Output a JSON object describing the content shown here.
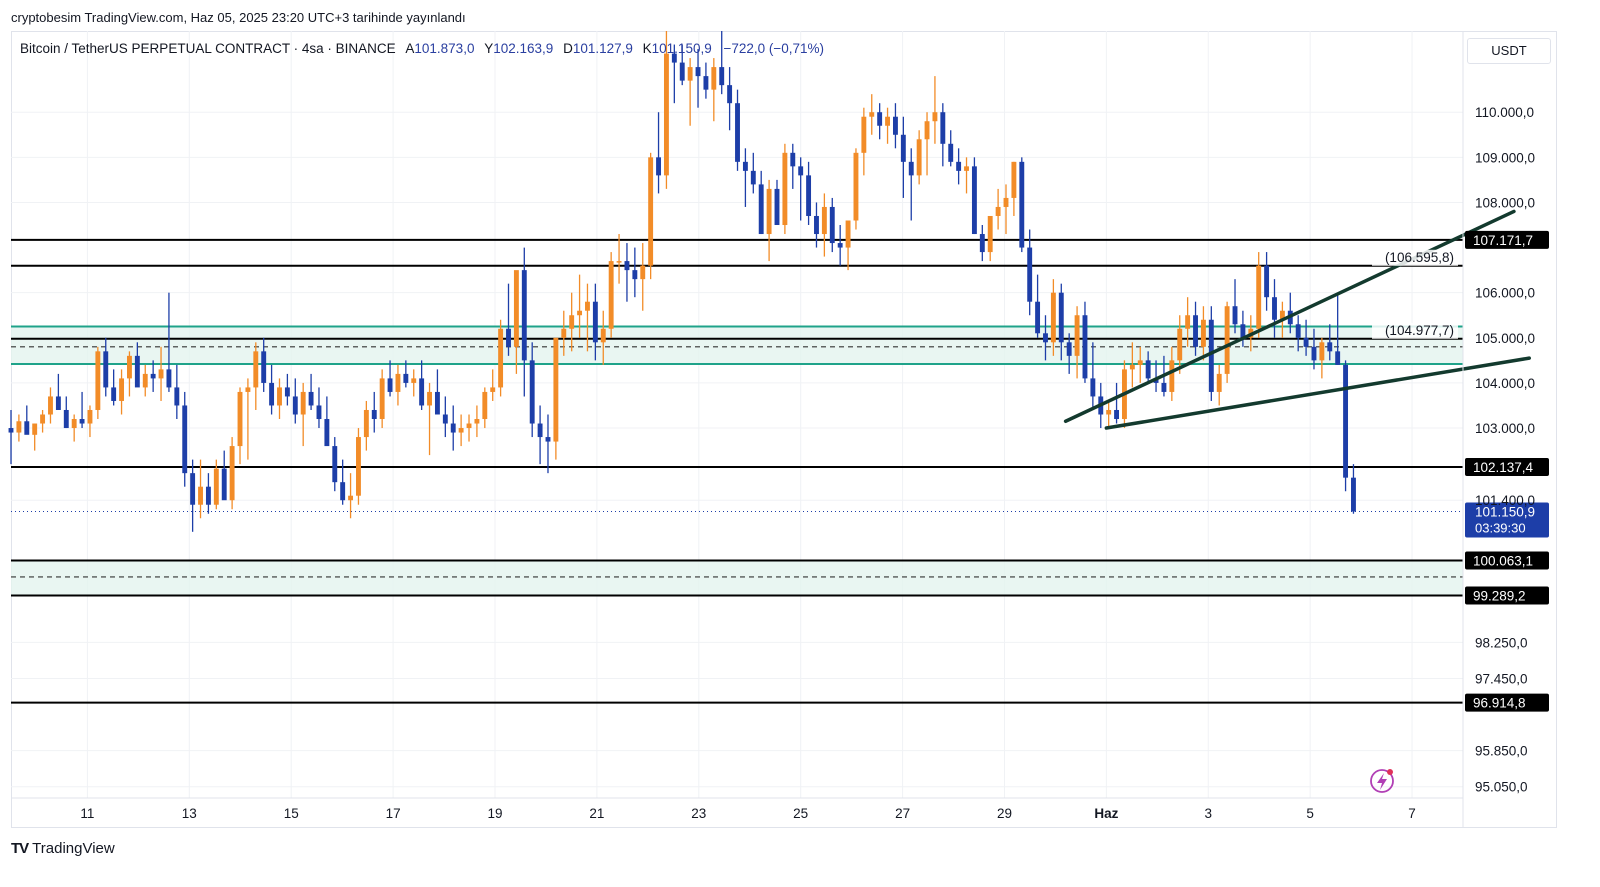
{
  "header": {
    "publish_line": "cryptobesim TradingView.com, Haz 05, 2025 23:20 UTC+3 tarihinde yayınlandı"
  },
  "legend": {
    "symbol": "Bitcoin / TetherUS PERPETUAL CONTRACT · 4sa · BINANCE",
    "open_label": "A",
    "open_value": "101.873,0",
    "high_label": "Y",
    "high_value": "102.163,9",
    "low_label": "D",
    "low_value": "101.127,9",
    "close_label": "K",
    "close_value": "101.150,9",
    "change": "−722,0 (−0,71%)"
  },
  "currency_button": "USDT",
  "branding": {
    "name": "TradingView",
    "logo_text": "TV"
  },
  "colors": {
    "up": "#f28c28",
    "down": "#1d3ea8",
    "level": "#000000",
    "zone_border": "#1fa38a",
    "zone_fill": "#e3f4ef",
    "trendline": "#133a2e",
    "grid": "#f0f2f5",
    "price_tag": "#1d3ea8"
  },
  "chart_data": {
    "type": "candlestick",
    "interval": "4sa",
    "x_tick_labels": [
      "11",
      "13",
      "15",
      "17",
      "19",
      "21",
      "23",
      "25",
      "27",
      "29",
      "Haz",
      "3",
      "5",
      "7"
    ],
    "x_tick_days": [
      11,
      13,
      15,
      17,
      19,
      21,
      23,
      25,
      27,
      29,
      31,
      33,
      35,
      37
    ],
    "x_range_days": [
      9.5,
      38.0
    ],
    "y_range": [
      94800,
      111800
    ],
    "y_tick_labels": [
      "110.000,0",
      "109.000,0",
      "108.000,0",
      "106.000,0",
      "105.000,0",
      "104.000,0",
      "103.000,0",
      "101.400,0",
      "98.250,0",
      "97.450,0",
      "95.850,0",
      "95.050,0"
    ],
    "y_tick_values": [
      110000,
      109000,
      108000,
      106000,
      105000,
      104000,
      103000,
      101400,
      98250,
      97450,
      95850,
      95050
    ],
    "horizontal_levels": [
      {
        "value": 107171.7,
        "label": "107.171,7"
      },
      {
        "value": 106595.8,
        "label": "(106.595,8)"
      },
      {
        "value": 104977.7,
        "label": "(104.977,7)"
      },
      {
        "value": 102137.4,
        "label": "102.137,4"
      },
      {
        "value": 100063.1,
        "label": "100.063,1"
      },
      {
        "value": 99289.2,
        "label": "99.289,2"
      },
      {
        "value": 96914.8,
        "label": "96.914,8"
      }
    ],
    "zones": [
      {
        "top": 105250,
        "bottom": 104420,
        "dashed_mid": 104800
      },
      {
        "top": 100063.1,
        "bottom": 99289.2,
        "dashed_mid": 99700
      }
    ],
    "trendlines": [
      {
        "from": [
          30.2,
          103150
        ],
        "to": [
          39.0,
          107800
        ]
      },
      {
        "from": [
          31.0,
          103000
        ],
        "to": [
          39.3,
          104550
        ]
      }
    ],
    "last_price": {
      "value": 101150.9,
      "label": "101.150,9",
      "countdown": "03:39:30"
    },
    "candles_ohlc": [
      [
        103000,
        103400,
        102200,
        102900
      ],
      [
        102900,
        103300,
        102700,
        103150
      ],
      [
        103150,
        103500,
        102900,
        102850
      ],
      [
        102850,
        103100,
        102500,
        103100
      ],
      [
        103100,
        103400,
        102900,
        103300
      ],
      [
        103300,
        103900,
        103100,
        103700
      ],
      [
        103700,
        104200,
        103400,
        103400
      ],
      [
        103400,
        103700,
        103000,
        103000
      ],
      [
        103000,
        103300,
        102700,
        103200
      ],
      [
        103200,
        103800,
        103000,
        103100
      ],
      [
        103100,
        103500,
        102800,
        103400
      ],
      [
        103400,
        104800,
        103200,
        104700
      ],
      [
        104700,
        105000,
        103700,
        103900
      ],
      [
        103900,
        104300,
        103500,
        103600
      ],
      [
        103600,
        104300,
        103300,
        104100
      ],
      [
        104100,
        104700,
        103700,
        104600
      ],
      [
        104600,
        104900,
        104000,
        103900
      ],
      [
        103900,
        104400,
        103700,
        104200
      ],
      [
        104200,
        104500,
        103800,
        104100
      ],
      [
        104100,
        104800,
        103600,
        104300
      ],
      [
        104300,
        106000,
        103800,
        103900
      ],
      [
        103900,
        104400,
        103200,
        103500
      ],
      [
        103500,
        103800,
        101700,
        102000
      ],
      [
        102000,
        102300,
        100700,
        101300
      ],
      [
        101300,
        102300,
        101000,
        101700
      ],
      [
        101700,
        102000,
        101100,
        101300
      ],
      [
        101300,
        102300,
        101200,
        102100
      ],
      [
        102100,
        102500,
        101500,
        101400
      ],
      [
        101400,
        102800,
        101200,
        102600
      ],
      [
        102600,
        103900,
        102200,
        103800
      ],
      [
        103800,
        104100,
        102300,
        103900
      ],
      [
        103900,
        104900,
        103400,
        104700
      ],
      [
        104700,
        105000,
        103800,
        104000
      ],
      [
        104000,
        104400,
        103300,
        103500
      ],
      [
        103500,
        104100,
        103200,
        103900
      ],
      [
        103900,
        104200,
        103500,
        103700
      ],
      [
        103700,
        104100,
        103100,
        103300
      ],
      [
        103300,
        104000,
        102600,
        103800
      ],
      [
        103800,
        104200,
        103400,
        103500
      ],
      [
        103500,
        103900,
        103000,
        103200
      ],
      [
        103200,
        103700,
        102800,
        102600
      ],
      [
        102600,
        102800,
        101600,
        101800
      ],
      [
        101800,
        102300,
        101300,
        101400
      ],
      [
        101400,
        102000,
        101000,
        101500
      ],
      [
        101500,
        103000,
        101300,
        102800
      ],
      [
        102800,
        103600,
        102500,
        103400
      ],
      [
        103400,
        103800,
        102900,
        103200
      ],
      [
        103200,
        104300,
        103000,
        104100
      ],
      [
        104100,
        104500,
        103700,
        103800
      ],
      [
        103800,
        104400,
        103500,
        104200
      ],
      [
        104200,
        104500,
        103900,
        104000
      ],
      [
        104000,
        104300,
        103700,
        104100
      ],
      [
        104100,
        104500,
        103400,
        103500
      ],
      [
        103500,
        104000,
        102400,
        103800
      ],
      [
        103800,
        104300,
        103500,
        103300
      ],
      [
        103300,
        103700,
        102800,
        103100
      ],
      [
        103100,
        103500,
        102500,
        102900
      ],
      [
        102900,
        103300,
        102600,
        103000
      ],
      [
        103000,
        103300,
        102700,
        103100
      ],
      [
        103100,
        103500,
        102800,
        103200
      ],
      [
        103200,
        103900,
        103000,
        103800
      ],
      [
        103800,
        104300,
        103600,
        103900
      ],
      [
        103900,
        105400,
        103700,
        105200
      ],
      [
        105200,
        106200,
        104600,
        104800
      ],
      [
        104800,
        106400,
        104200,
        106500
      ],
      [
        106500,
        107000,
        103700,
        104500
      ],
      [
        104500,
        104900,
        102800,
        103100
      ],
      [
        103100,
        103500,
        102200,
        102800
      ],
      [
        102800,
        103300,
        102000,
        102700
      ],
      [
        102700,
        105000,
        102300,
        105000
      ],
      [
        105000,
        105600,
        104600,
        105200
      ],
      [
        105200,
        106000,
        104700,
        105500
      ],
      [
        105500,
        106400,
        105000,
        105600
      ],
      [
        105600,
        106200,
        104700,
        105800
      ],
      [
        105800,
        106200,
        104500,
        104900
      ],
      [
        104900,
        105600,
        104400,
        105200
      ],
      [
        105200,
        106900,
        105000,
        106700
      ],
      [
        106700,
        107300,
        106200,
        106700
      ],
      [
        106700,
        107100,
        105800,
        106500
      ],
      [
        106500,
        107000,
        105900,
        106300
      ],
      [
        106300,
        107100,
        105600,
        106600
      ],
      [
        106600,
        109100,
        106300,
        109000
      ],
      [
        109000,
        110000,
        108200,
        108600
      ],
      [
        108600,
        111800,
        108300,
        111300
      ],
      [
        111300,
        111500,
        110200,
        111100
      ],
      [
        111100,
        111500,
        110600,
        110700
      ],
      [
        110700,
        111200,
        109700,
        111000
      ],
      [
        111000,
        111400,
        110100,
        110800
      ],
      [
        110800,
        111100,
        110300,
        110500
      ],
      [
        110500,
        111200,
        109800,
        111000
      ],
      [
        111000,
        111800,
        110400,
        110600
      ],
      [
        110600,
        111000,
        109600,
        110200
      ],
      [
        110200,
        110500,
        108700,
        108900
      ],
      [
        108900,
        109200,
        107900,
        108700
      ],
      [
        108700,
        109100,
        108200,
        108400
      ],
      [
        108400,
        108700,
        107300,
        107300
      ],
      [
        107300,
        108500,
        106700,
        108300
      ],
      [
        108300,
        108500,
        107600,
        107500
      ],
      [
        107500,
        109300,
        107300,
        109100
      ],
      [
        109100,
        109300,
        108300,
        108800
      ],
      [
        108800,
        109000,
        107600,
        108600
      ],
      [
        108600,
        108900,
        107500,
        107700
      ],
      [
        107700,
        108000,
        107000,
        107300
      ],
      [
        107300,
        108200,
        106800,
        107900
      ],
      [
        107900,
        108100,
        106900,
        107100
      ],
      [
        107100,
        107500,
        106600,
        107000
      ],
      [
        107000,
        107600,
        106500,
        107600
      ],
      [
        107600,
        109200,
        107400,
        109100
      ],
      [
        109100,
        110100,
        108600,
        109900
      ],
      [
        109900,
        110400,
        109500,
        110000
      ],
      [
        110000,
        110200,
        109400,
        109700
      ],
      [
        109700,
        110100,
        109300,
        109900
      ],
      [
        109900,
        110200,
        109200,
        109500
      ],
      [
        109500,
        109900,
        108100,
        108900
      ],
      [
        108900,
        109200,
        107600,
        108600
      ],
      [
        108600,
        109600,
        108400,
        109400
      ],
      [
        109400,
        110000,
        108600,
        109800
      ],
      [
        109800,
        110800,
        109300,
        110000
      ],
      [
        110000,
        110200,
        108800,
        109300
      ],
      [
        109300,
        109600,
        108800,
        108900
      ],
      [
        108900,
        109200,
        108400,
        108700
      ],
      [
        108700,
        109000,
        108200,
        108800
      ],
      [
        108800,
        109000,
        107300,
        107300
      ],
      [
        107300,
        107500,
        106700,
        106900
      ],
      [
        106900,
        107600,
        106700,
        107700
      ],
      [
        107700,
        108300,
        107400,
        107900
      ],
      [
        107900,
        108400,
        107300,
        108100
      ],
      [
        108100,
        108900,
        107700,
        108900
      ],
      [
        108900,
        109000,
        106900,
        107000
      ],
      [
        107000,
        107400,
        105500,
        105800
      ],
      [
        105800,
        106400,
        105000,
        105100
      ],
      [
        105100,
        105500,
        104500,
        104900
      ],
      [
        104900,
        106300,
        104600,
        106000
      ],
      [
        106000,
        106200,
        104500,
        104900
      ],
      [
        104900,
        105100,
        104200,
        104600
      ],
      [
        104600,
        105700,
        104100,
        105500
      ],
      [
        105500,
        105800,
        104000,
        104100
      ],
      [
        104100,
        104900,
        103400,
        103700
      ],
      [
        103700,
        104000,
        103000,
        103300
      ],
      [
        103300,
        103600,
        103000,
        103400
      ],
      [
        103400,
        104000,
        103100,
        103200
      ],
      [
        103200,
        104500,
        103000,
        104300
      ],
      [
        104300,
        104900,
        103900,
        104400
      ],
      [
        104400,
        104800,
        104000,
        104500
      ],
      [
        104500,
        104700,
        104000,
        104100
      ],
      [
        104100,
        104500,
        103800,
        104000
      ],
      [
        104000,
        104600,
        103700,
        103800
      ],
      [
        103800,
        104800,
        103600,
        104500
      ],
      [
        104500,
        105500,
        104200,
        105200
      ],
      [
        105200,
        105900,
        104800,
        105500
      ],
      [
        105500,
        105800,
        104600,
        104800
      ],
      [
        104800,
        105700,
        104500,
        105400
      ],
      [
        105400,
        105700,
        103600,
        103800
      ],
      [
        103800,
        104400,
        103500,
        104200
      ],
      [
        104200,
        105800,
        104000,
        105700
      ],
      [
        105700,
        106300,
        105100,
        105300
      ],
      [
        105300,
        105600,
        104800,
        105000
      ],
      [
        105000,
        105500,
        104700,
        105200
      ],
      [
        105200,
        106900,
        105000,
        106600
      ],
      [
        106600,
        106900,
        105600,
        105900
      ],
      [
        105900,
        106300,
        105000,
        105400
      ],
      [
        105400,
        105800,
        105000,
        105600
      ],
      [
        105600,
        106000,
        105100,
        105300
      ],
      [
        105300,
        105500,
        104700,
        105000
      ],
      [
        105000,
        105400,
        104600,
        104800
      ],
      [
        104800,
        105200,
        104300,
        104500
      ],
      [
        104500,
        105000,
        104100,
        104900
      ],
      [
        104900,
        105300,
        104500,
        104700
      ],
      [
        104700,
        106000,
        104400,
        104400
      ],
      [
        104400,
        104500,
        101600,
        101900
      ],
      [
        101900,
        102200,
        101100,
        101150
      ]
    ]
  }
}
